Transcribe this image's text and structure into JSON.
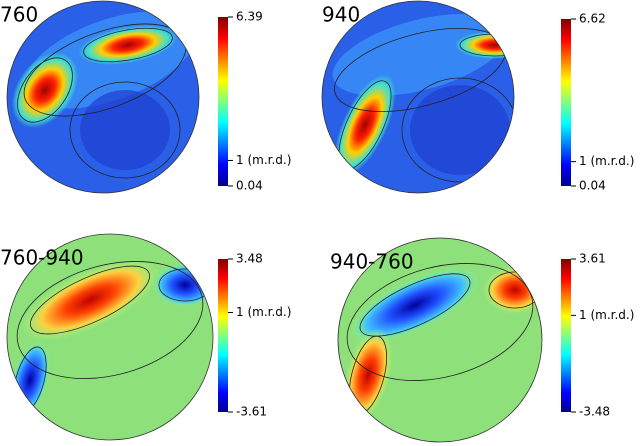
{
  "chart_data": [
    {
      "type": "heatmap",
      "title": "760",
      "clim": [
        0.04,
        6.39
      ],
      "cticks": [
        6.39,
        {
          "value": 1,
          "label": "1 (m.r.d.)"
        },
        0.04
      ]
    },
    {
      "type": "heatmap",
      "title": "940",
      "clim": [
        0.04,
        6.62
      ],
      "cticks": [
        6.62,
        {
          "value": 1,
          "label": "1 (m.r.d.)"
        },
        0.04
      ]
    },
    {
      "type": "heatmap",
      "title": "760-940",
      "clim": [
        -3.61,
        3.48
      ],
      "cticks": [
        3.48,
        {
          "value": 1,
          "label": "1 (m.r.d.)"
        },
        -3.61
      ]
    },
    {
      "type": "heatmap",
      "title": "940-760",
      "clim": [
        -3.48,
        3.61
      ],
      "cticks": [
        3.61,
        {
          "value": 1,
          "label": "1 (m.r.d.)"
        },
        -3.48
      ]
    }
  ]
}
